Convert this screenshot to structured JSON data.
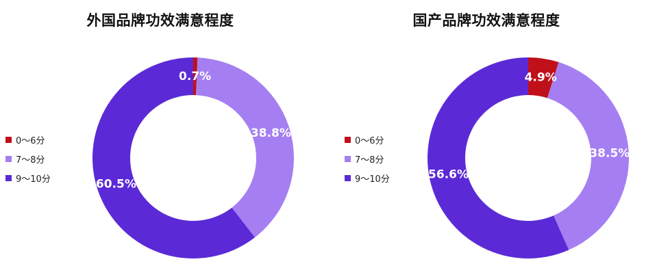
{
  "chart_data": [
    {
      "type": "pie",
      "variant": "donut",
      "title": "外国品牌功效满意程度",
      "categories": [
        "0～6分",
        "7～8分",
        "9～10分"
      ],
      "values": [
        0.7,
        38.8,
        60.5
      ],
      "labels": [
        "0.7%",
        "38.8%",
        "60.5%"
      ],
      "colors": [
        "#c0101a",
        "#a57ff2",
        "#5b2ad6"
      ],
      "legend_position": "left"
    },
    {
      "type": "pie",
      "variant": "donut",
      "title": "国产品牌功效满意程度",
      "categories": [
        "0～6分",
        "7～8分",
        "9～10分"
      ],
      "values": [
        4.9,
        38.5,
        56.6
      ],
      "labels": [
        "4.9%",
        "38.5%",
        "56.6%"
      ],
      "colors": [
        "#c0101a",
        "#a57ff2",
        "#5b2ad6"
      ],
      "legend_position": "left"
    }
  ]
}
